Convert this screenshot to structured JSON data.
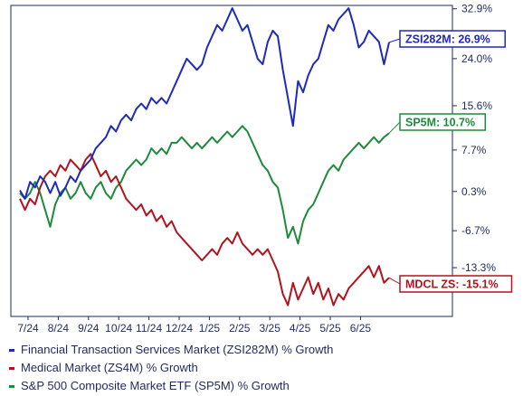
{
  "chart_data": {
    "type": "line",
    "title": "",
    "xlabel": "",
    "ylabel": "",
    "ylim": [
      -22,
      33.5
    ],
    "x_ticks": [
      "7/24",
      "8/24",
      "9/24",
      "10/24",
      "11/24",
      "12/24",
      "1/25",
      "2/25",
      "3/25",
      "4/25",
      "5/25",
      "6/25"
    ],
    "y_ticks": [
      32.9,
      24.0,
      15.6,
      7.7,
      0.3,
      -6.7,
      -13.3
    ],
    "y_tick_labels": [
      "32.9%",
      "24.0%",
      "15.6%",
      "7.7%",
      "0.3%",
      "-6.7%",
      "-13.3%"
    ],
    "grid": false,
    "legend_position": "bottom-left",
    "series": [
      {
        "name": "Financial Transaction Services Market (ZSI282M) % Growth",
        "color": "#1f2ab8",
        "end_label": "ZSI282M: 26.9%",
        "points": [
          [
            0,
            0.5
          ],
          [
            4,
            -1
          ],
          [
            8,
            2
          ],
          [
            12,
            1
          ],
          [
            16,
            3
          ],
          [
            20,
            2
          ],
          [
            24,
            0
          ],
          [
            28,
            2
          ],
          [
            32,
            -0.5
          ],
          [
            36,
            1
          ],
          [
            40,
            3
          ],
          [
            44,
            2
          ],
          [
            48,
            4
          ],
          [
            52,
            5
          ],
          [
            56,
            6
          ],
          [
            60,
            8
          ],
          [
            64,
            9
          ],
          [
            68,
            10
          ],
          [
            72,
            12
          ],
          [
            76,
            11
          ],
          [
            80,
            13
          ],
          [
            84,
            14
          ],
          [
            88,
            13
          ],
          [
            92,
            15
          ],
          [
            96,
            16
          ],
          [
            100,
            15
          ],
          [
            104,
            17
          ],
          [
            108,
            16
          ],
          [
            112,
            17
          ],
          [
            116,
            16
          ],
          [
            120,
            18
          ],
          [
            124,
            20
          ],
          [
            128,
            22
          ],
          [
            132,
            24
          ],
          [
            136,
            23
          ],
          [
            140,
            22
          ],
          [
            144,
            23
          ],
          [
            148,
            26
          ],
          [
            152,
            28
          ],
          [
            156,
            30
          ],
          [
            160,
            29
          ],
          [
            164,
            31
          ],
          [
            168,
            33
          ],
          [
            172,
            31
          ],
          [
            176,
            29
          ],
          [
            180,
            30
          ],
          [
            184,
            27
          ],
          [
            188,
            24
          ],
          [
            192,
            23
          ],
          [
            196,
            27
          ],
          [
            200,
            29
          ],
          [
            204,
            28
          ],
          [
            208,
            22
          ],
          [
            212,
            17
          ],
          [
            216,
            12
          ],
          [
            220,
            20
          ],
          [
            224,
            18
          ],
          [
            228,
            21
          ],
          [
            232,
            23
          ],
          [
            236,
            24
          ],
          [
            240,
            27
          ],
          [
            244,
            30
          ],
          [
            248,
            29
          ],
          [
            252,
            31
          ],
          [
            256,
            32
          ],
          [
            260,
            33
          ],
          [
            264,
            30
          ],
          [
            268,
            26
          ],
          [
            272,
            27
          ],
          [
            276,
            29
          ],
          [
            280,
            28
          ],
          [
            284,
            27
          ],
          [
            288,
            23
          ],
          [
            292,
            26.9
          ]
        ]
      },
      {
        "name": "Medical Market (ZS4M) % Growth",
        "color": "#b0141e",
        "end_label": "MDCL ZS: -15.1%",
        "points": [
          [
            0,
            -1
          ],
          [
            4,
            -3
          ],
          [
            8,
            -1
          ],
          [
            12,
            -2
          ],
          [
            16,
            1
          ],
          [
            20,
            3
          ],
          [
            24,
            4
          ],
          [
            28,
            3
          ],
          [
            32,
            5
          ],
          [
            36,
            4
          ],
          [
            40,
            6
          ],
          [
            44,
            5
          ],
          [
            48,
            4
          ],
          [
            52,
            6
          ],
          [
            56,
            7
          ],
          [
            60,
            5
          ],
          [
            64,
            3
          ],
          [
            68,
            4
          ],
          [
            72,
            2
          ],
          [
            76,
            3
          ],
          [
            80,
            1
          ],
          [
            84,
            -1
          ],
          [
            88,
            -2
          ],
          [
            92,
            -3
          ],
          [
            96,
            -2
          ],
          [
            100,
            -4
          ],
          [
            104,
            -3
          ],
          [
            108,
            -5
          ],
          [
            112,
            -4
          ],
          [
            116,
            -6
          ],
          [
            120,
            -5
          ],
          [
            124,
            -7
          ],
          [
            128,
            -8
          ],
          [
            132,
            -9
          ],
          [
            136,
            -10
          ],
          [
            140,
            -11
          ],
          [
            144,
            -12
          ],
          [
            148,
            -11
          ],
          [
            152,
            -10
          ],
          [
            156,
            -11
          ],
          [
            160,
            -9
          ],
          [
            164,
            -8
          ],
          [
            168,
            -9
          ],
          [
            172,
            -7
          ],
          [
            176,
            -9
          ],
          [
            180,
            -10
          ],
          [
            184,
            -11
          ],
          [
            188,
            -10
          ],
          [
            192,
            -11
          ],
          [
            196,
            -10
          ],
          [
            200,
            -12
          ],
          [
            204,
            -14
          ],
          [
            208,
            -18
          ],
          [
            212,
            -20
          ],
          [
            216,
            -16
          ],
          [
            220,
            -19
          ],
          [
            224,
            -17
          ],
          [
            228,
            -15
          ],
          [
            232,
            -18
          ],
          [
            236,
            -16
          ],
          [
            240,
            -19
          ],
          [
            244,
            -17
          ],
          [
            248,
            -20
          ],
          [
            252,
            -18
          ],
          [
            256,
            -19
          ],
          [
            260,
            -17
          ],
          [
            264,
            -16
          ],
          [
            268,
            -15
          ],
          [
            272,
            -14
          ],
          [
            276,
            -13
          ],
          [
            280,
            -15
          ],
          [
            284,
            -13
          ],
          [
            288,
            -16
          ],
          [
            292,
            -15.1
          ]
        ]
      },
      {
        "name": "S&P 500 Composite Market ETF (SP5M) % Growth",
        "color": "#1e8a3c",
        "end_label": "SP5M: 10.7%",
        "points": [
          [
            0,
            0
          ],
          [
            4,
            -1
          ],
          [
            8,
            0
          ],
          [
            12,
            2
          ],
          [
            16,
            0
          ],
          [
            20,
            -3
          ],
          [
            24,
            -6
          ],
          [
            28,
            -2
          ],
          [
            32,
            0
          ],
          [
            36,
            1
          ],
          [
            40,
            -1
          ],
          [
            44,
            0
          ],
          [
            48,
            2
          ],
          [
            52,
            0
          ],
          [
            56,
            -1
          ],
          [
            60,
            1
          ],
          [
            64,
            2
          ],
          [
            68,
            0
          ],
          [
            72,
            -1
          ],
          [
            76,
            1
          ],
          [
            80,
            2
          ],
          [
            84,
            4
          ],
          [
            88,
            5
          ],
          [
            92,
            6
          ],
          [
            96,
            5
          ],
          [
            100,
            6
          ],
          [
            104,
            8
          ],
          [
            108,
            7
          ],
          [
            112,
            8
          ],
          [
            116,
            7
          ],
          [
            120,
            9
          ],
          [
            124,
            9
          ],
          [
            128,
            10
          ],
          [
            132,
            9
          ],
          [
            136,
            8
          ],
          [
            140,
            9
          ],
          [
            144,
            8
          ],
          [
            148,
            9
          ],
          [
            152,
            10
          ],
          [
            156,
            9
          ],
          [
            160,
            10
          ],
          [
            164,
            11
          ],
          [
            168,
            10
          ],
          [
            172,
            11
          ],
          [
            176,
            12
          ],
          [
            180,
            11
          ],
          [
            184,
            9
          ],
          [
            188,
            7
          ],
          [
            192,
            5
          ],
          [
            196,
            4
          ],
          [
            200,
            2
          ],
          [
            204,
            1
          ],
          [
            208,
            -3
          ],
          [
            212,
            -8
          ],
          [
            216,
            -6
          ],
          [
            220,
            -9
          ],
          [
            224,
            -5
          ],
          [
            228,
            -3
          ],
          [
            232,
            -2
          ],
          [
            236,
            0
          ],
          [
            240,
            2
          ],
          [
            244,
            4
          ],
          [
            248,
            5
          ],
          [
            252,
            4
          ],
          [
            256,
            6
          ],
          [
            260,
            7
          ],
          [
            264,
            8
          ],
          [
            268,
            9
          ],
          [
            272,
            8
          ],
          [
            276,
            9
          ],
          [
            280,
            10
          ],
          [
            284,
            9
          ],
          [
            288,
            10
          ],
          [
            292,
            10.7
          ]
        ]
      }
    ]
  }
}
